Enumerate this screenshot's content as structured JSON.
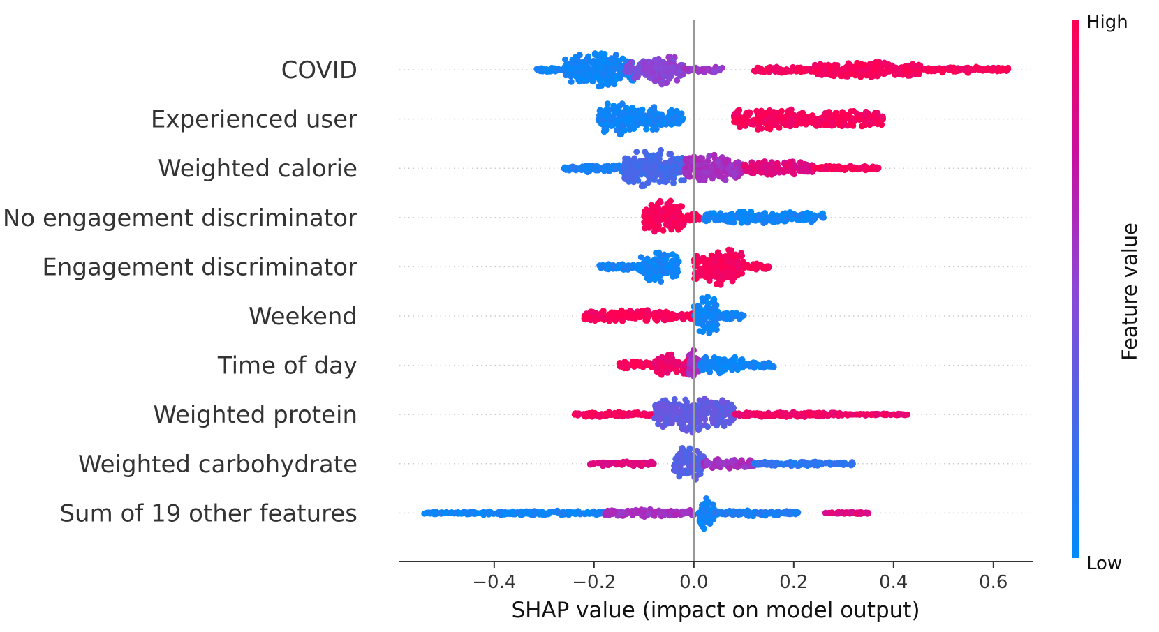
{
  "chart_data": {
    "type": "scatter",
    "subtype": "shap-beeswarm",
    "xlabel": "SHAP value (impact on model output)",
    "ylabel": "",
    "xlim": [
      -0.59,
      0.68
    ],
    "xticks": [
      -0.4,
      -0.2,
      0.0,
      0.2,
      0.4,
      0.6
    ],
    "xtick_labels": [
      "−0.4",
      "−0.2",
      "0.0",
      "0.2",
      "0.4",
      "0.6"
    ],
    "colorbar": {
      "title": "Feature value",
      "high_label": "High",
      "low_label": "Low",
      "low_color": "#008bfb",
      "high_color": "#ff0052"
    },
    "features": [
      {
        "name": "COVID",
        "segments": [
          {
            "lo": -0.32,
            "hi": -0.26,
            "w": 0.12,
            "c": 0.05
          },
          {
            "lo": -0.26,
            "hi": -0.12,
            "w": 0.8,
            "c": 0.05
          },
          {
            "lo": -0.14,
            "hi": -0.06,
            "w": 0.45,
            "c": 0.45
          },
          {
            "lo": -0.1,
            "hi": -0.02,
            "w": 0.7,
            "c": 0.5
          },
          {
            "lo": -0.02,
            "hi": 0.06,
            "w": 0.15,
            "c": 0.55
          },
          {
            "lo": 0.12,
            "hi": 0.24,
            "w": 0.15,
            "c": 0.97
          },
          {
            "lo": 0.24,
            "hi": 0.46,
            "w": 0.4,
            "c": 0.97
          },
          {
            "lo": 0.46,
            "hi": 0.63,
            "w": 0.14,
            "c": 0.97
          }
        ]
      },
      {
        "name": "Experienced user",
        "segments": [
          {
            "lo": -0.19,
            "hi": -0.12,
            "w": 0.85,
            "c": 0.05
          },
          {
            "lo": -0.12,
            "hi": -0.02,
            "w": 0.55,
            "c": 0.05
          },
          {
            "lo": 0.08,
            "hi": 0.22,
            "w": 0.55,
            "c": 0.97
          },
          {
            "lo": 0.22,
            "hi": 0.38,
            "w": 0.4,
            "c": 0.97
          }
        ]
      },
      {
        "name": "Weighted calorie",
        "segments": [
          {
            "lo": -0.26,
            "hi": -0.12,
            "w": 0.18,
            "c": 0.1
          },
          {
            "lo": -0.14,
            "hi": -0.02,
            "w": 0.9,
            "c": 0.25
          },
          {
            "lo": -0.02,
            "hi": 0.1,
            "w": 0.65,
            "c": 0.6
          },
          {
            "lo": 0.1,
            "hi": 0.24,
            "w": 0.35,
            "c": 0.85
          },
          {
            "lo": 0.24,
            "hi": 0.37,
            "w": 0.12,
            "c": 0.97
          }
        ]
      },
      {
        "name": "No engagement discriminator",
        "segments": [
          {
            "lo": -0.1,
            "hi": -0.02,
            "w": 0.85,
            "c": 0.97
          },
          {
            "lo": -0.02,
            "hi": 0.02,
            "w": 0.2,
            "c": 0.97
          },
          {
            "lo": 0.02,
            "hi": 0.26,
            "w": 0.3,
            "c": 0.05
          }
        ]
      },
      {
        "name": "Engagement discriminator",
        "segments": [
          {
            "lo": -0.19,
            "hi": -0.11,
            "w": 0.15,
            "c": 0.05
          },
          {
            "lo": -0.11,
            "hi": -0.03,
            "w": 0.75,
            "c": 0.05
          },
          {
            "lo": 0.0,
            "hi": 0.1,
            "w": 0.9,
            "c": 0.97
          },
          {
            "lo": 0.1,
            "hi": 0.15,
            "w": 0.15,
            "c": 0.97
          }
        ]
      },
      {
        "name": "Weekend",
        "segments": [
          {
            "lo": -0.22,
            "hi": -0.04,
            "w": 0.3,
            "c": 0.97
          },
          {
            "lo": -0.04,
            "hi": 0.0,
            "w": 0.2,
            "c": 0.97
          },
          {
            "lo": 0.0,
            "hi": 0.05,
            "w": 0.9,
            "c": 0.05
          },
          {
            "lo": 0.05,
            "hi": 0.1,
            "w": 0.2,
            "c": 0.05
          }
        ]
      },
      {
        "name": "Time of day",
        "segments": [
          {
            "lo": -0.15,
            "hi": -0.08,
            "w": 0.2,
            "c": 0.97
          },
          {
            "lo": -0.08,
            "hi": 0.0,
            "w": 0.55,
            "c": 0.92
          },
          {
            "lo": -0.01,
            "hi": 0.01,
            "w": 0.85,
            "c": 0.6
          },
          {
            "lo": 0.01,
            "hi": 0.1,
            "w": 0.45,
            "c": 0.05
          },
          {
            "lo": 0.1,
            "hi": 0.16,
            "w": 0.15,
            "c": 0.05
          }
        ]
      },
      {
        "name": "Weighted protein",
        "segments": [
          {
            "lo": -0.24,
            "hi": -0.08,
            "w": 0.12,
            "c": 0.95
          },
          {
            "lo": -0.08,
            "hi": 0.08,
            "w": 0.85,
            "c": 0.35
          },
          {
            "lo": 0.08,
            "hi": 0.3,
            "w": 0.12,
            "c": 0.92
          },
          {
            "lo": 0.3,
            "hi": 0.43,
            "w": 0.05,
            "c": 0.92
          }
        ]
      },
      {
        "name": "Weighted carbohydrate",
        "segments": [
          {
            "lo": -0.21,
            "hi": -0.08,
            "w": 0.12,
            "c": 0.85
          },
          {
            "lo": -0.04,
            "hi": 0.02,
            "w": 0.85,
            "c": 0.3
          },
          {
            "lo": 0.02,
            "hi": 0.12,
            "w": 0.25,
            "c": 0.6
          },
          {
            "lo": 0.12,
            "hi": 0.32,
            "w": 0.12,
            "c": 0.15
          }
        ]
      },
      {
        "name": "Sum of 19 other features",
        "segments": [
          {
            "lo": -0.54,
            "hi": -0.46,
            "w": 0.06,
            "c": 0.05
          },
          {
            "lo": -0.46,
            "hi": -0.18,
            "w": 0.12,
            "c": 0.05
          },
          {
            "lo": -0.18,
            "hi": 0.0,
            "w": 0.18,
            "c": 0.6
          },
          {
            "lo": 0.01,
            "hi": 0.04,
            "w": 0.9,
            "c": 0.05
          },
          {
            "lo": 0.04,
            "hi": 0.21,
            "w": 0.15,
            "c": 0.1
          },
          {
            "lo": 0.26,
            "hi": 0.35,
            "w": 0.05,
            "c": 0.85
          }
        ]
      }
    ]
  }
}
